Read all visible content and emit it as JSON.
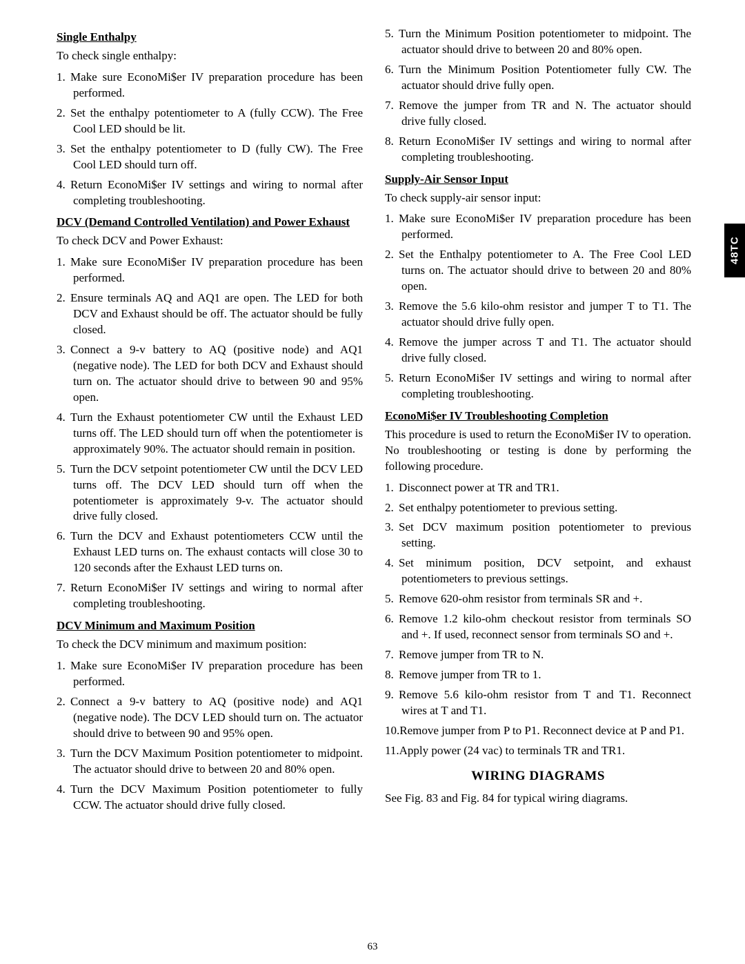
{
  "side_tab": "48TC",
  "page_number": "63",
  "left": {
    "sec1": {
      "heading": "Single Enthalpy",
      "intro": "To check single enthalpy:",
      "items": [
        "Make sure EconoMi$er IV preparation procedure has been performed.",
        "Set the enthalpy potentiometer to A (fully CCW). The Free Cool LED should be lit.",
        "Set the enthalpy potentiometer to D (fully CW). The Free Cool LED should turn off.",
        "Return EconoMi$er IV settings and wiring to normal after completing troubleshooting."
      ]
    },
    "sec2": {
      "heading": "DCV (Demand Controlled Ventilation) and Power Exhaust",
      "intro": "To check DCV and Power Exhaust:",
      "items": [
        "Make sure EconoMi$er IV preparation procedure has been performed.",
        "Ensure terminals AQ and AQ1 are open. The LED for both DCV and Exhaust should be off. The actuator should be fully closed.",
        "Connect a 9-v battery to AQ (positive node) and AQ1 (negative node). The LED for both DCV and Exhaust should turn on. The actuator should drive to between 90 and 95% open.",
        "Turn the Exhaust potentiometer CW until the Exhaust LED turns off. The LED should turn off when the potentiometer is approximately 90%. The actuator should remain in position.",
        "Turn the DCV setpoint potentiometer CW until the DCV LED turns off. The DCV LED should turn off when the potentiometer is approximately 9-v. The actuator should drive fully closed.",
        "Turn the DCV and Exhaust potentiometers CCW until the Exhaust LED turns on. The exhaust contacts will close 30 to 120 seconds after the Exhaust LED turns on.",
        "Return EconoMi$er IV settings and wiring to normal after completing troubleshooting."
      ]
    },
    "sec3": {
      "heading": "DCV Minimum and Maximum Position",
      "intro": "To check the DCV minimum and maximum position:",
      "items": [
        "Make sure EconoMi$er IV preparation procedure has been performed.",
        "Connect a 9-v battery to AQ (positive node) and AQ1 (negative node). The DCV LED should turn on. The actuator should drive to between 90 and 95% open.",
        "Turn the DCV Maximum Position potentiometer to midpoint. The actuator should drive to between 20 and 80% open.",
        "Turn the DCV Maximum Position potentiometer to fully CCW. The actuator should drive fully closed."
      ]
    }
  },
  "right": {
    "sec0": {
      "items": [
        "Turn the Minimum Position potentiometer to midpoint. The actuator should drive to between 20 and 80% open.",
        "Turn the Minimum Position Potentiometer fully CW. The actuator should drive fully open.",
        "Remove the jumper from TR and N. The actuator should drive fully closed.",
        "Return EconoMi$er IV settings and wiring to normal after completing troubleshooting."
      ]
    },
    "sec1": {
      "heading": "Supply-Air Sensor Input",
      "intro": "To check supply-air sensor input:",
      "items": [
        "Make sure EconoMi$er IV preparation procedure has been performed.",
        "Set the Enthalpy potentiometer to A. The Free Cool LED turns on. The actuator should drive to between 20 and 80% open.",
        "Remove the 5.6 kilo-ohm resistor and jumper T to T1. The actuator should drive fully open.",
        "Remove the jumper across T and T1. The actuator should drive fully closed.",
        "Return EconoMi$er IV settings and wiring to normal after completing troubleshooting."
      ]
    },
    "sec2": {
      "heading": "EconoMi$er IV Troubleshooting Completion",
      "intro": "This procedure is used to return the EconoMi$er IV to operation. No troubleshooting or testing is done by performing the following procedure.",
      "items": [
        "Disconnect power at TR and TR1.",
        "Set enthalpy potentiometer to previous setting.",
        "Set DCV maximum position potentiometer to previous setting.",
        "Set minimum position, DCV setpoint, and exhaust potentiometers to previous settings.",
        "Remove 620-ohm resistor from terminals SR and +.",
        "Remove 1.2 kilo-ohm checkout resistor from terminals SO and +. If used, reconnect sensor from terminals SO and +.",
        "Remove jumper from TR to N.",
        "Remove jumper from TR to 1.",
        "Remove 5.6 kilo-ohm resistor from T and T1. Reconnect wires at T and T1.",
        "Remove jumper from P to P1. Reconnect device at P and P1.",
        "Apply power (24 vac) to terminals TR and TR1."
      ]
    },
    "wiring": {
      "heading": "WIRING DIAGRAMS",
      "body": "See Fig. 83 and Fig. 84 for typical wiring diagrams."
    }
  }
}
